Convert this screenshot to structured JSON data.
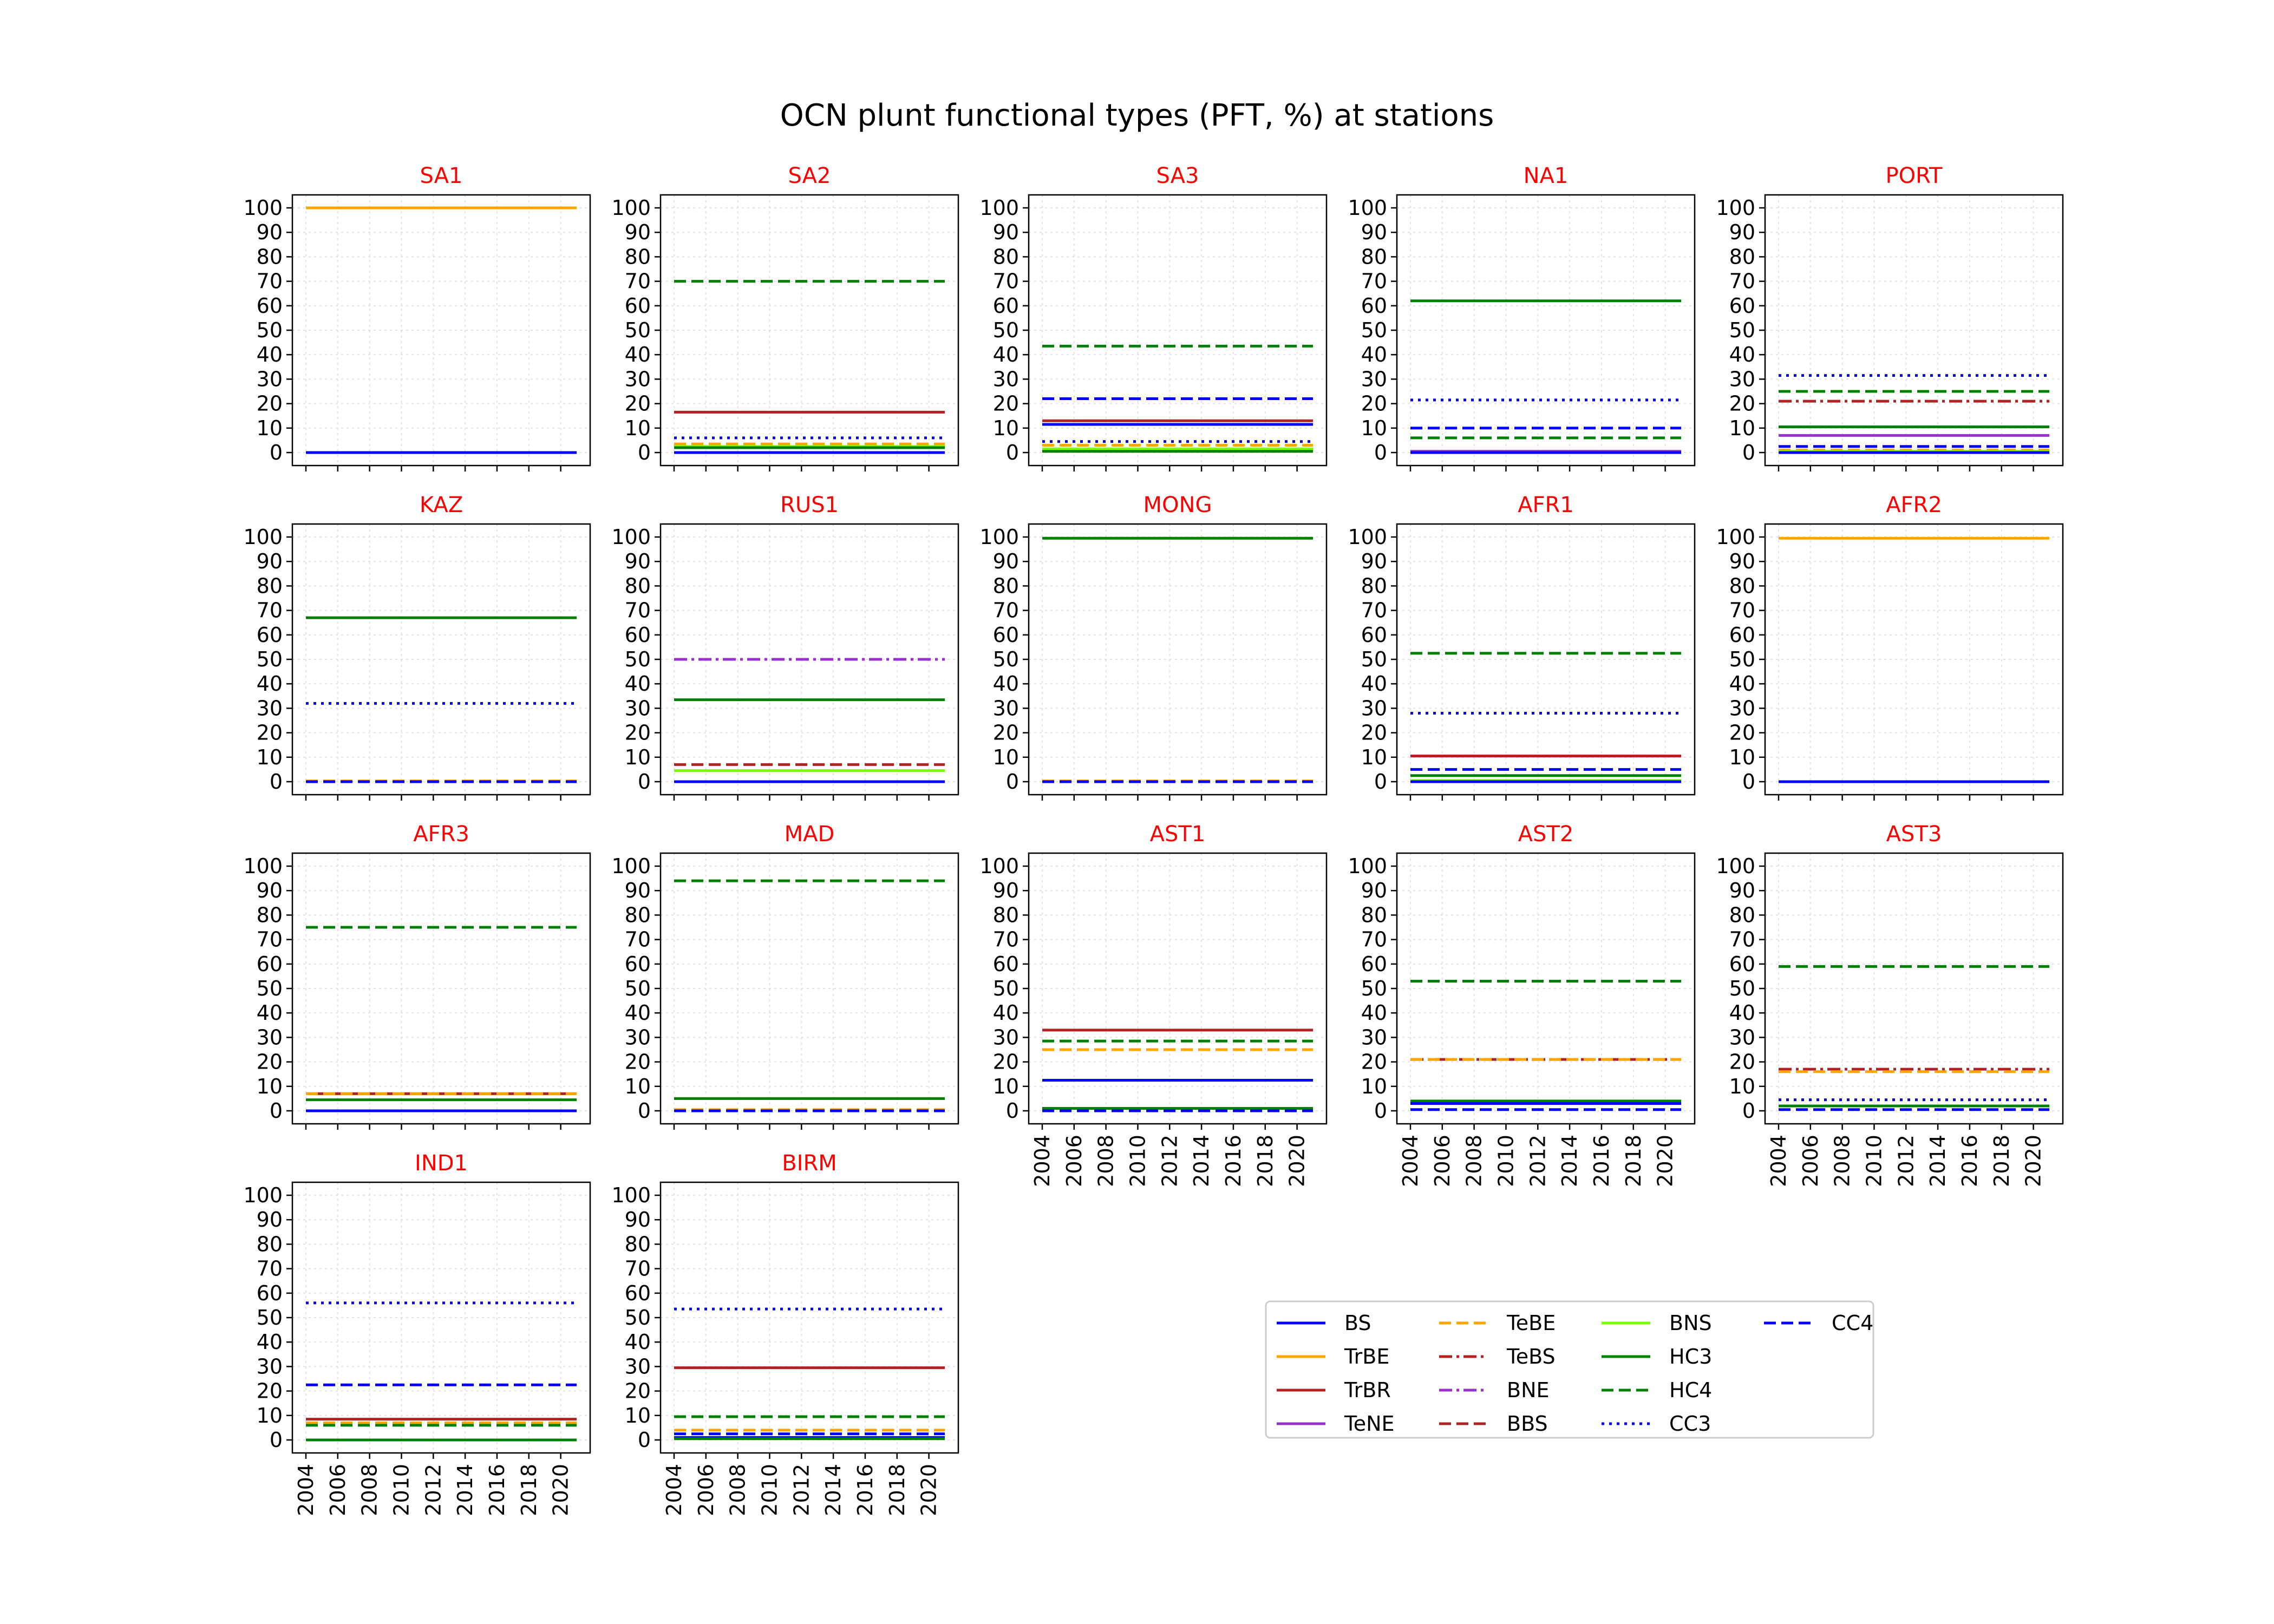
{
  "chart_data": {
    "type": "line",
    "title": "OCN plunt functional types (PFT, %) at stations",
    "xlabel": "",
    "ylabel": "",
    "ylim": [
      0,
      100
    ],
    "y_ticks": [
      0,
      10,
      20,
      30,
      40,
      50,
      60,
      70,
      80,
      90,
      100
    ],
    "x_ticks": [
      "2004",
      "2006",
      "2008",
      "2010",
      "2012",
      "2014",
      "2016",
      "2018",
      "2020"
    ],
    "x_range": [
      2004,
      2021
    ],
    "grid": true,
    "legend_position": "lower-right",
    "legend": [
      {
        "name": "BS",
        "color": "#0000ff",
        "dash": "solid"
      },
      {
        "name": "TrBE",
        "color": "#ffa500",
        "dash": "solid"
      },
      {
        "name": "TrBR",
        "color": "#b22222",
        "dash": "solid"
      },
      {
        "name": "TeNE",
        "color": "#9932cc",
        "dash": "solid"
      },
      {
        "name": "TeBE",
        "color": "#ffa500",
        "dash": "dashed"
      },
      {
        "name": "TeBS",
        "color": "#b22222",
        "dash": "dashdot"
      },
      {
        "name": "BNE",
        "color": "#9932cc",
        "dash": "dashdot"
      },
      {
        "name": "BBS",
        "color": "#b22222",
        "dash": "dashed"
      },
      {
        "name": "BNS",
        "color": "#7cfc00",
        "dash": "solid"
      },
      {
        "name": "HC3",
        "color": "#008000",
        "dash": "solid"
      },
      {
        "name": "HC4",
        "color": "#008000",
        "dash": "dashed"
      },
      {
        "name": "CC3",
        "color": "#0000ff",
        "dash": "dotted"
      },
      {
        "name": "CC4",
        "color": "#0000ff",
        "dash": "dashed"
      }
    ],
    "panels": [
      {
        "title": "SA1",
        "values": {
          "TrBE": 100,
          "BS": 0,
          "CC4": 0
        }
      },
      {
        "title": "SA2",
        "values": {
          "HC4": 70,
          "TrBR": 16.5,
          "CC3": 6,
          "TeBE": 3.5,
          "BNS": 2.5,
          "HC3": 2,
          "BS": 0,
          "CC4": 0
        }
      },
      {
        "title": "SA3",
        "values": {
          "HC4": 43.5,
          "CC4": 22,
          "TrBR": 13,
          "BS": 11.5,
          "CC3": 4.5,
          "TeBE": 3,
          "BNS": 1.5,
          "HC3": 0.5
        }
      },
      {
        "title": "NA1",
        "values": {
          "HC3": 62,
          "CC3": 21.5,
          "CC4": 10,
          "HC4": 6,
          "TeNE": 0.5,
          "BS": 0
        }
      },
      {
        "title": "PORT",
        "values": {
          "CC3": 31.5,
          "HC4": 25,
          "TeBS": 21,
          "HC3": 10.5,
          "TeNE": 7,
          "CC4": 2.5,
          "TeBE": 1,
          "BNS": 0.5,
          "BS": 0
        }
      },
      {
        "title": "KAZ",
        "values": {
          "HC3": 67,
          "CC3": 32,
          "TeBE": 0.3,
          "CC4": 0
        }
      },
      {
        "title": "RUS1",
        "values": {
          "BNE": 50,
          "HC3": 33.5,
          "BBS": 7,
          "BNS": 4.5,
          "BS": 0
        }
      },
      {
        "title": "MONG",
        "values": {
          "HC3": 99.5,
          "TeBE": 0.3,
          "CC4": 0
        }
      },
      {
        "title": "AFR1",
        "values": {
          "HC4": 52.5,
          "CC3": 28,
          "TrBR": 10.5,
          "CC4": 5,
          "HC3": 2.5,
          "BNS": 0.5,
          "BS": 0
        }
      },
      {
        "title": "AFR2",
        "values": {
          "TrBE": 99.5,
          "BS": 0,
          "CC4": 0
        }
      },
      {
        "title": "AFR3",
        "values": {
          "HC4": 75,
          "TrBR": 7,
          "TeBE": 7,
          "HC3": 4.5,
          "BS": 0,
          "CC4": 0
        }
      },
      {
        "title": "MAD",
        "values": {
          "HC4": 94,
          "HC3": 5,
          "TeBE": 0.5,
          "CC4": 0
        }
      },
      {
        "title": "AST1",
        "values": {
          "TrBR": 33,
          "HC4": 28.5,
          "TeBE": 25,
          "BS": 12.5,
          "HC3": 1,
          "CC4": 0
        }
      },
      {
        "title": "AST2",
        "values": {
          "HC4": 53,
          "TeBS": 21,
          "TeBE": 21,
          "HC3": 4,
          "BS": 3,
          "CC4": 0.5
        }
      },
      {
        "title": "AST3",
        "values": {
          "HC4": 59,
          "TeBS": 17,
          "TeBE": 16,
          "CC3": 4.5,
          "HC3": 2,
          "CC4": 0.5
        }
      },
      {
        "title": "IND1",
        "values": {
          "CC3": 56,
          "CC4": 22.5,
          "TrBR": 8.5,
          "TeBE": 7,
          "HC4": 6,
          "HC3": 0
        }
      },
      {
        "title": "BIRM",
        "values": {
          "CC3": 53.5,
          "TrBR": 29.5,
          "HC4": 9.5,
          "TeBE": 4,
          "CC4": 2.5,
          "BS": 1,
          "HC3": 0.5
        }
      }
    ]
  }
}
